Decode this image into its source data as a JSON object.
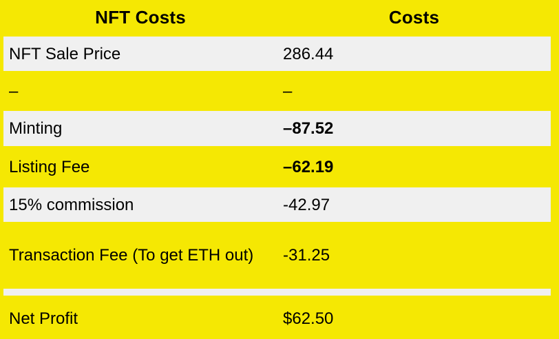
{
  "colors": {
    "yellow": "#f5e803",
    "gray": "#f0f0f0",
    "text": "#000000"
  },
  "table": {
    "header": {
      "col1": "NFT Costs",
      "col2": "Costs"
    },
    "rows": [
      {
        "label": "NFT Sale Price",
        "value": "286.44",
        "bold_value": false,
        "separator": false
      },
      {
        "label": "–",
        "value": "–",
        "bold_value": false,
        "separator": false
      },
      {
        "label": "Minting",
        "value": "–87.52",
        "bold_value": true,
        "separator": false
      },
      {
        "label": "Listing Fee",
        "value": "–62.19",
        "bold_value": true,
        "separator": false
      },
      {
        "label": "15% commission",
        "value": "-42.97",
        "bold_value": false,
        "separator": false
      },
      {
        "label": "Transaction Fee (To get ETH out)",
        "value": "-31.25",
        "bold_value": false,
        "separator": false
      },
      {
        "label": "",
        "value": "",
        "bold_value": false,
        "separator": true
      },
      {
        "label": "Net Profit",
        "value": "$62.50",
        "bold_value": false,
        "separator": false
      }
    ]
  },
  "chart_data": {
    "type": "table",
    "title": "NFT Costs",
    "columns": [
      "NFT Costs",
      "Costs"
    ],
    "rows": [
      [
        "NFT Sale Price",
        "286.44"
      ],
      [
        "–",
        "–"
      ],
      [
        "Minting",
        "–87.52"
      ],
      [
        "Listing Fee",
        "–62.19"
      ],
      [
        "15% commission",
        "-42.97"
      ],
      [
        "Transaction Fee (To get ETH out)",
        "-31.25"
      ],
      [
        "Net Profit",
        "$62.50"
      ]
    ],
    "bold_values": [
      "–87.52",
      "–62.19"
    ],
    "layout": {
      "row_stripes": [
        "gray",
        "yellow"
      ],
      "header_bg": "yellow"
    }
  }
}
